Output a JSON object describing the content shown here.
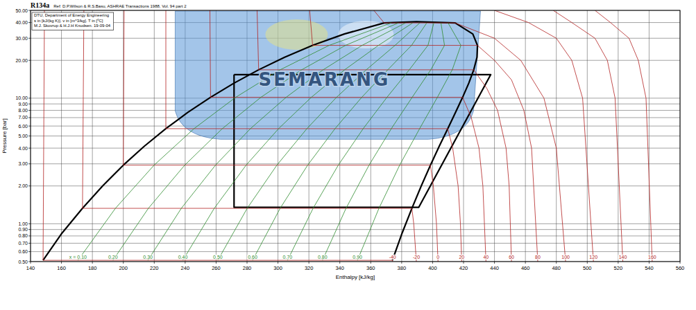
{
  "chart_data": {
    "type": "line",
    "title": "R134a",
    "subtitle": "Ref: D.P.Wilson & R.S.Basu, ASHRAE Transactions 1988, Vol. 94 part 2",
    "info_box": [
      "DTU, Department of Energy Engineering",
      "s in [kJ/(kg K)]. v in [m^3/kg]. T in [ºC]",
      "M.J. Skovrup & H.J.H Knudsen. 19-09-04"
    ],
    "x_label": "Enthalpy [kJ/kg]",
    "y_label": "Pressure [bar]",
    "xlim": [
      140,
      560
    ],
    "ylim": [
      0.5,
      50
    ],
    "log": "y",
    "grid": true,
    "xticks": [
      140,
      160,
      180,
      200,
      220,
      240,
      260,
      280,
      300,
      320,
      340,
      360,
      380,
      400,
      420,
      440,
      460,
      480,
      500,
      520,
      540,
      560
    ],
    "yticks": [
      {
        "value": 50,
        "label": "50.00"
      },
      {
        "value": 40,
        "label": "40.00"
      },
      {
        "value": 30,
        "label": "30.00"
      },
      {
        "value": 20,
        "label": "20.00"
      },
      {
        "value": 10,
        "label": "10.00"
      },
      {
        "value": 9,
        "label": "9.00"
      },
      {
        "value": 8,
        "label": "8.00"
      },
      {
        "value": 7,
        "label": "7.00"
      },
      {
        "value": 6,
        "label": "6.00"
      },
      {
        "value": 5,
        "label": "5.00"
      },
      {
        "value": 4,
        "label": "4.00"
      },
      {
        "value": 3,
        "label": "3.00"
      },
      {
        "value": 2,
        "label": "2.00"
      },
      {
        "value": 1,
        "label": "1.00"
      },
      {
        "value": 0.9,
        "label": "0.90"
      },
      {
        "value": 0.8,
        "label": "0.80"
      },
      {
        "value": 0.7,
        "label": "0.70"
      },
      {
        "value": 0.6,
        "label": "0.60"
      },
      {
        "value": 0.5,
        "label": "0.50"
      }
    ],
    "annotations": [
      {
        "text": "SEMARANG",
        "x": 330,
        "y": 14
      }
    ],
    "series": [
      {
        "color": "#000000",
        "line_style": "bold",
        "x": [
          148.1,
          160.4,
          173.6,
          186.7,
          200.0,
          213.6,
          227.5,
          241.7,
          256.4,
          271.6,
          287.5,
          304.3,
          322.4,
          342.9,
          368.7,
          389.6,
          414.6,
          426.0,
          429.0,
          428.7,
          426.6,
          423.4,
          419.4,
          414.8,
          409.8,
          404.3,
          398.6,
          392.7,
          386.6,
          380.3,
          374.0
        ],
        "values": [
          0.512,
          0.844,
          1.327,
          2.006,
          2.928,
          4.146,
          5.717,
          7.702,
          10.166,
          13.18,
          16.82,
          21.17,
          26.33,
          32.44,
          39.72,
          40.59,
          39.72,
          32.44,
          26.33,
          21.17,
          16.82,
          13.18,
          10.166,
          7.702,
          5.717,
          4.146,
          2.928,
          2.006,
          1.327,
          0.844,
          0.512
        ]
      },
      {
        "color": "#000000",
        "line_style": "bold",
        "x": [
          271.6,
          437.6,
          391.0,
          271.6,
          271.6
        ],
        "values": [
          15.4,
          15.4,
          1.35,
          1.35,
          15.4
        ]
      },
      {
        "name": "-40",
        "color": "#b22222",
        "line_style": "solid",
        "x": [
          149,
          148.1,
          374.0,
          374.1
        ],
        "values": [
          50,
          0.512,
          0.512,
          0.5
        ]
      },
      {
        "name": "-20",
        "color": "#b22222",
        "line_style": "solid",
        "x": [
          174.5,
          173.6,
          386.6,
          387.8,
          389.5
        ],
        "values": [
          50,
          1.327,
          1.327,
          1.0,
          0.5
        ]
      },
      {
        "name": "0",
        "color": "#b22222",
        "line_style": "solid",
        "x": [
          200.5,
          200.0,
          398.6,
          400.5,
          402.5,
          403.5
        ],
        "values": [
          50,
          2.928,
          2.928,
          2.0,
          1.0,
          0.5
        ]
      },
      {
        "name": "20",
        "color": "#b22222",
        "line_style": "solid",
        "x": [
          227.5,
          227.5,
          409.8,
          413,
          416.5,
          418,
          418.8
        ],
        "values": [
          50,
          5.717,
          5.717,
          4,
          2,
          1,
          0.5
        ]
      },
      {
        "name": "40",
        "color": "#b22222",
        "line_style": "solid",
        "x": [
          256,
          256.4,
          419.4,
          425,
          430,
          432.5,
          434.5
        ],
        "values": [
          50,
          10.166,
          10.166,
          7,
          4,
          2,
          0.5
        ]
      },
      {
        "name": "60",
        "color": "#b22222",
        "line_style": "solid",
        "x": [
          286.5,
          287.5,
          426.6,
          435,
          442,
          447.5,
          449.5,
          451
        ],
        "values": [
          50,
          16.82,
          16.82,
          12,
          8,
          4,
          2,
          0.5
        ]
      },
      {
        "name": "80",
        "color": "#b22222",
        "line_style": "solid",
        "x": [
          320.5,
          322.4,
          429.0,
          440,
          451,
          459,
          464,
          468
        ],
        "values": [
          50,
          26.33,
          26.33,
          20,
          14,
          8,
          4,
          0.5
        ]
      },
      {
        "name": "100",
        "color": "#b22222",
        "line_style": "solid",
        "x": [
          362,
          368.7,
          414.6,
          440,
          457,
          472,
          480,
          486
        ],
        "values": [
          50,
          39.72,
          39.72,
          30,
          20,
          10,
          4,
          0.5
        ]
      },
      {
        "name": "120",
        "color": "#b22222",
        "line_style": "solid",
        "x": [
          440,
          462,
          480,
          490,
          497,
          504
        ],
        "values": [
          50,
          40,
          30,
          20,
          10,
          0.5
        ]
      },
      {
        "name": "140",
        "color": "#b22222",
        "line_style": "solid",
        "x": [
          478,
          490,
          505,
          513,
          518,
          523
        ],
        "values": [
          50,
          40,
          30,
          20,
          10,
          0.5
        ]
      },
      {
        "name": "160",
        "color": "#b22222",
        "line_style": "solid",
        "x": [
          505,
          515,
          527,
          533,
          538,
          542
        ],
        "values": [
          50,
          40,
          30,
          20,
          10,
          0.5
        ]
      },
      {
        "name": "x = 0.10",
        "color": "#2e8b2e",
        "line_style": "solid",
        "x": [
          170.7,
          194.9,
          219.9,
          245.7,
          272.7,
          301.4,
          333.1,
          373.3
        ],
        "values": [
          0.512,
          1.327,
          2.928,
          5.717,
          10.166,
          16.82,
          26.33,
          39.72
        ]
      },
      {
        "name": "0.20",
        "color": "#2e8b2e",
        "line_style": "solid",
        "x": [
          193.3,
          216.2,
          239.7,
          264.0,
          289.0,
          315.3,
          343.7,
          377.9
        ],
        "values": [
          0.512,
          1.327,
          2.928,
          5.717,
          10.166,
          16.82,
          26.33,
          39.72
        ]
      },
      {
        "name": "0.30",
        "color": "#2e8b2e",
        "line_style": "solid",
        "x": [
          215.9,
          237.5,
          259.6,
          282.2,
          305.3,
          329.2,
          354.4,
          382.5
        ],
        "values": [
          0.512,
          1.327,
          2.928,
          5.717,
          10.166,
          16.82,
          26.33,
          39.72
        ]
      },
      {
        "name": "0.40",
        "color": "#2e8b2e",
        "line_style": "solid",
        "x": [
          238.5,
          258.8,
          279.4,
          300.4,
          321.6,
          343.1,
          365.0,
          387.1
        ],
        "values": [
          0.512,
          1.327,
          2.928,
          5.717,
          10.166,
          16.82,
          26.33,
          39.72
        ]
      },
      {
        "name": "0.50",
        "color": "#2e8b2e",
        "line_style": "solid",
        "x": [
          261.1,
          280.1,
          299.3,
          318.7,
          337.9,
          357.1,
          375.7,
          391.7
        ],
        "values": [
          0.512,
          1.327,
          2.928,
          5.717,
          10.166,
          16.82,
          26.33,
          39.72
        ]
      },
      {
        "name": "0.60",
        "color": "#2e8b2e",
        "line_style": "solid",
        "x": [
          283.6,
          301.4,
          319.2,
          336.9,
          354.2,
          371.0,
          386.4,
          396.2
        ],
        "values": [
          0.512,
          1.327,
          2.928,
          5.717,
          10.166,
          16.82,
          26.33,
          39.72
        ]
      },
      {
        "name": "0.70",
        "color": "#2e8b2e",
        "line_style": "solid",
        "x": [
          306.2,
          322.7,
          339.0,
          355.1,
          370.5,
          384.9,
          397.0,
          400.8
        ],
        "values": [
          0.512,
          1.327,
          2.928,
          5.717,
          10.166,
          16.82,
          26.33,
          39.72
        ]
      },
      {
        "name": "0.80",
        "color": "#2e8b2e",
        "line_style": "solid",
        "x": [
          328.8,
          344.0,
          358.9,
          373.3,
          386.8,
          398.8,
          407.7,
          405.4
        ],
        "values": [
          0.512,
          1.327,
          2.928,
          5.717,
          10.166,
          16.82,
          26.33,
          39.72
        ]
      },
      {
        "name": "0.90",
        "color": "#2e8b2e",
        "line_style": "solid",
        "x": [
          351.4,
          365.3,
          378.7,
          391.6,
          403.1,
          412.7,
          418.3,
          410.0
        ],
        "values": [
          0.512,
          1.327,
          2.928,
          5.717,
          10.166,
          16.82,
          26.33,
          39.72
        ]
      }
    ]
  }
}
